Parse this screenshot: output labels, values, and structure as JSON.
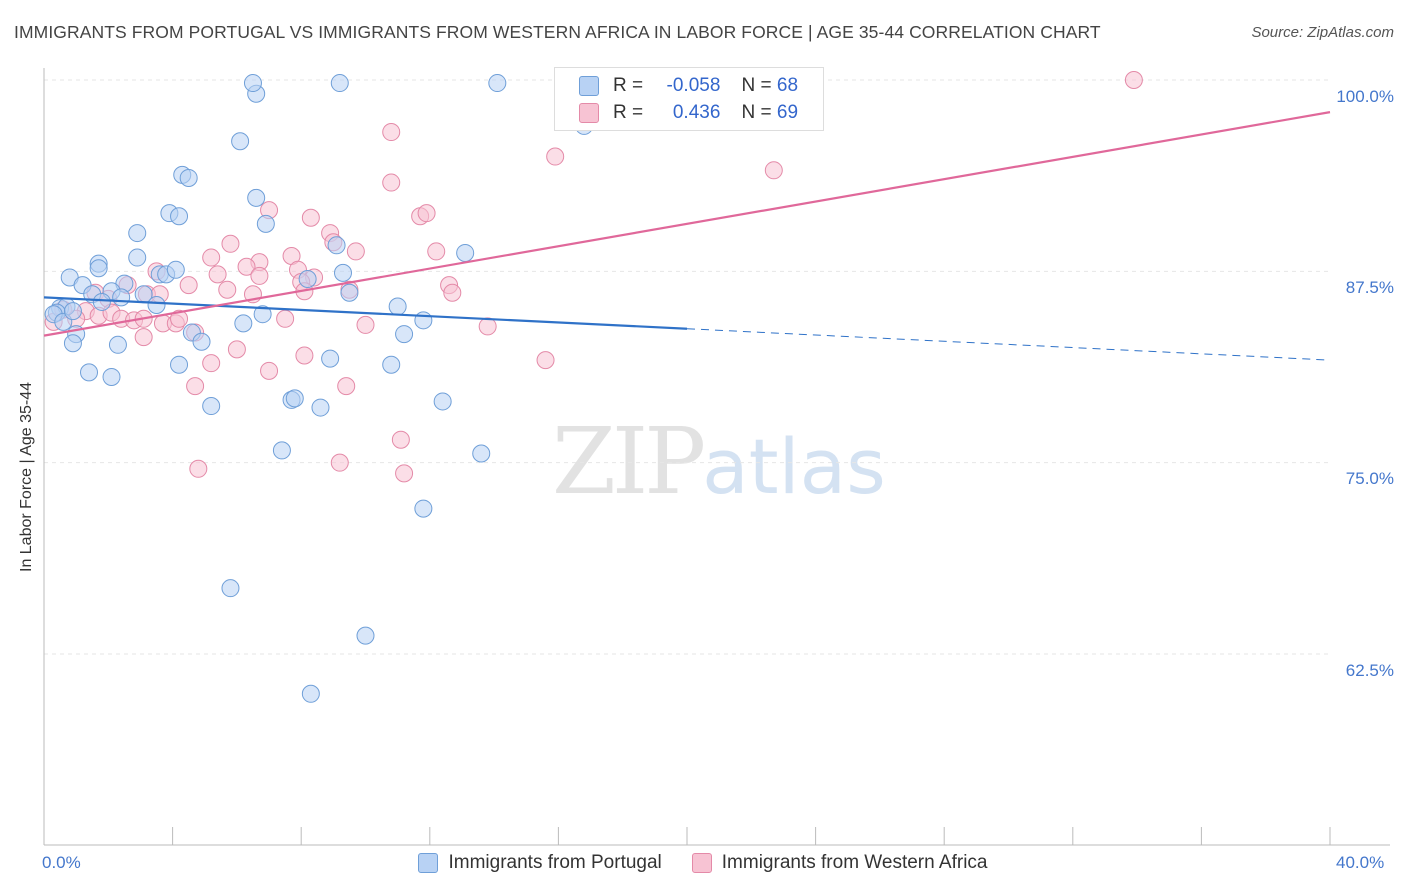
{
  "header": {
    "title": "IMMIGRANTS FROM PORTUGAL VS IMMIGRANTS FROM WESTERN AFRICA IN LABOR FORCE | AGE 35-44 CORRELATION CHART",
    "source": "Source: ZipAtlas.com"
  },
  "watermark": {
    "zip": "ZIP",
    "atlas": "atlas"
  },
  "legend": {
    "rows": [
      {
        "r_label": "R =",
        "r_value": "-0.058",
        "n_label": "N =",
        "n_value": "68"
      },
      {
        "r_label": "R =",
        "r_value": "0.436",
        "n_label": "N =",
        "n_value": "69"
      }
    ]
  },
  "colors": {
    "portugal_fill": "#b8d2f4",
    "portugal_stroke": "#6f9fd8",
    "portugal_line": "#2f72c8",
    "wafrica_fill": "#f7c3d3",
    "wafrica_stroke": "#e48aa8",
    "wafrica_line": "#e0689a",
    "tick_label": "#4477cc",
    "grid": "#e6e6e6"
  },
  "chart_data": {
    "type": "scatter",
    "title": "IMMIGRANTS FROM PORTUGAL VS IMMIGRANTS FROM WESTERN AFRICA IN LABOR FORCE | AGE 35-44 CORRELATION CHART",
    "xlabel": "",
    "ylabel": "In Labor Force | Age 35-44",
    "xlim": [
      0,
      40
    ],
    "ylim": [
      50,
      100
    ],
    "x_tick_labels": [
      "0.0%",
      "40.0%"
    ],
    "y_ticks": [
      62.5,
      75.0,
      87.5,
      100.0
    ],
    "y_tick_labels": [
      "62.5%",
      "75.0%",
      "87.5%",
      "100.0%"
    ],
    "grid": true,
    "legend_position": "top-center",
    "series": [
      {
        "name": "Immigrants from Portugal",
        "r": -0.058,
        "n": 68,
        "trend": {
          "x0": 0,
          "y0": 85.8,
          "x1": 40,
          "y1": 81.7,
          "solid_until_x": 20
        },
        "points": [
          [
            6.6,
            99.1
          ],
          [
            6.5,
            99.8
          ],
          [
            9.2,
            99.8
          ],
          [
            14.1,
            99.8
          ],
          [
            16.8,
            97.0
          ],
          [
            6.1,
            96.0
          ],
          [
            4.3,
            93.8
          ],
          [
            4.5,
            93.6
          ],
          [
            6.6,
            92.3
          ],
          [
            3.9,
            91.3
          ],
          [
            4.2,
            91.1
          ],
          [
            6.9,
            90.6
          ],
          [
            2.9,
            90.0
          ],
          [
            13.1,
            88.7
          ],
          [
            2.9,
            88.4
          ],
          [
            1.7,
            88.0
          ],
          [
            1.7,
            87.7
          ],
          [
            3.6,
            87.3
          ],
          [
            3.8,
            87.3
          ],
          [
            9.1,
            89.2
          ],
          [
            9.3,
            87.4
          ],
          [
            8.2,
            87.0
          ],
          [
            4.1,
            87.6
          ],
          [
            0.8,
            87.1
          ],
          [
            1.2,
            86.6
          ],
          [
            2.5,
            86.7
          ],
          [
            2.1,
            86.2
          ],
          [
            1.5,
            86.0
          ],
          [
            2.4,
            85.8
          ],
          [
            3.1,
            86.0
          ],
          [
            9.5,
            86.1
          ],
          [
            0.5,
            85.1
          ],
          [
            0.7,
            85.2
          ],
          [
            0.4,
            84.8
          ],
          [
            1.8,
            85.5
          ],
          [
            3.5,
            85.3
          ],
          [
            6.8,
            84.7
          ],
          [
            11.0,
            85.2
          ],
          [
            0.3,
            84.7
          ],
          [
            0.6,
            84.2
          ],
          [
            0.9,
            84.9
          ],
          [
            6.2,
            84.1
          ],
          [
            11.8,
            84.3
          ],
          [
            11.2,
            83.4
          ],
          [
            1.0,
            83.4
          ],
          [
            4.6,
            83.5
          ],
          [
            0.9,
            82.8
          ],
          [
            2.3,
            82.7
          ],
          [
            4.9,
            82.9
          ],
          [
            8.9,
            81.8
          ],
          [
            10.8,
            81.4
          ],
          [
            1.4,
            80.9
          ],
          [
            2.1,
            80.6
          ],
          [
            4.2,
            81.4
          ],
          [
            5.2,
            78.7
          ],
          [
            7.7,
            79.1
          ],
          [
            7.8,
            79.2
          ],
          [
            8.6,
            78.6
          ],
          [
            12.4,
            79.0
          ],
          [
            7.4,
            75.8
          ],
          [
            13.6,
            75.6
          ],
          [
            11.8,
            72.0
          ],
          [
            5.8,
            66.8
          ],
          [
            10.0,
            63.7
          ],
          [
            8.3,
            59.9
          ]
        ]
      },
      {
        "name": "Immigrants from Western Africa",
        "r": 0.436,
        "n": 69,
        "trend": {
          "x0": 0,
          "y0": 83.3,
          "x1": 40,
          "y1": 97.9
        },
        "points": [
          [
            33.9,
            100.0
          ],
          [
            10.8,
            96.6
          ],
          [
            15.9,
            95.0
          ],
          [
            22.7,
            94.1
          ],
          [
            10.8,
            93.3
          ],
          [
            7.0,
            91.5
          ],
          [
            11.7,
            91.1
          ],
          [
            11.9,
            91.3
          ],
          [
            8.3,
            91.0
          ],
          [
            8.9,
            90.0
          ],
          [
            5.8,
            89.3
          ],
          [
            9.0,
            89.4
          ],
          [
            12.2,
            88.8
          ],
          [
            9.7,
            88.8
          ],
          [
            6.7,
            88.1
          ],
          [
            7.7,
            88.5
          ],
          [
            5.2,
            88.4
          ],
          [
            6.3,
            87.8
          ],
          [
            7.9,
            87.6
          ],
          [
            8.4,
            87.1
          ],
          [
            5.4,
            87.3
          ],
          [
            6.7,
            87.2
          ],
          [
            8.0,
            86.8
          ],
          [
            4.5,
            86.6
          ],
          [
            3.5,
            87.5
          ],
          [
            12.6,
            86.6
          ],
          [
            2.6,
            86.6
          ],
          [
            5.7,
            86.3
          ],
          [
            3.2,
            86.0
          ],
          [
            12.7,
            86.1
          ],
          [
            9.5,
            86.3
          ],
          [
            6.5,
            86.0
          ],
          [
            3.6,
            86.0
          ],
          [
            8.1,
            86.2
          ],
          [
            1.6,
            86.1
          ],
          [
            2.0,
            85.7
          ],
          [
            0.6,
            85.0
          ],
          [
            1.3,
            84.9
          ],
          [
            1.7,
            84.6
          ],
          [
            2.1,
            84.8
          ],
          [
            2.4,
            84.4
          ],
          [
            2.8,
            84.3
          ],
          [
            3.1,
            84.4
          ],
          [
            0.3,
            84.2
          ],
          [
            1.0,
            84.4
          ],
          [
            3.7,
            84.1
          ],
          [
            4.1,
            84.1
          ],
          [
            4.2,
            84.4
          ],
          [
            7.5,
            84.4
          ],
          [
            10.0,
            84.0
          ],
          [
            13.8,
            83.9
          ],
          [
            3.1,
            83.2
          ],
          [
            4.7,
            83.5
          ],
          [
            6.0,
            82.4
          ],
          [
            8.1,
            82.0
          ],
          [
            15.6,
            81.7
          ],
          [
            5.2,
            81.5
          ],
          [
            7.0,
            81.0
          ],
          [
            4.7,
            80.0
          ],
          [
            9.4,
            80.0
          ],
          [
            11.1,
            76.5
          ],
          [
            11.2,
            74.3
          ],
          [
            4.8,
            74.6
          ],
          [
            9.2,
            75.0
          ]
        ]
      }
    ]
  },
  "bottom_legend": {
    "items": [
      "Immigrants from Portugal",
      "Immigrants from Western Africa"
    ]
  }
}
